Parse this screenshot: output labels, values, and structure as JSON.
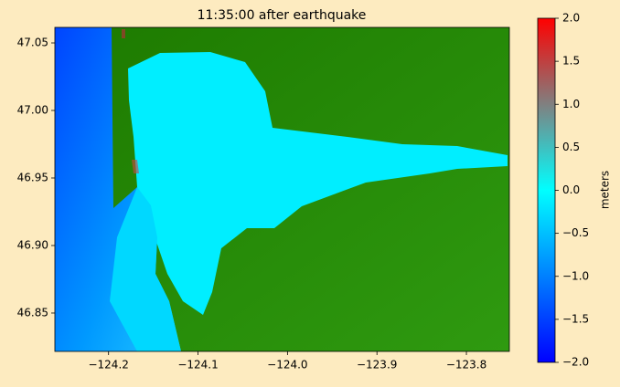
{
  "chart_data": {
    "type": "map",
    "title": "11:35:00 after earthquake",
    "xlim": [
      -124.26,
      -123.752
    ],
    "ylim": [
      46.8216,
      47.0615
    ],
    "xticks": [
      {
        "value": -124.2,
        "label": "−124.2"
      },
      {
        "value": -124.1,
        "label": "−124.1"
      },
      {
        "value": -124.0,
        "label": "−124.0"
      },
      {
        "value": -123.9,
        "label": "−123.9"
      },
      {
        "value": -123.8,
        "label": "−123.8"
      }
    ],
    "yticks": [
      46.85,
      {
        "value": 46.9,
        "label": "46.90"
      },
      46.95,
      {
        "value": 47.0,
        "label": "47.00"
      },
      47.05
    ],
    "colorbar": {
      "label": "meters",
      "clim": [
        -2,
        2
      ],
      "ticks": [
        {
          "value": -2,
          "label": "−2.0"
        },
        {
          "value": -1.5,
          "label": "−1.5"
        },
        {
          "value": -1,
          "label": "−1.0"
        },
        {
          "value": -0.5,
          "label": "−0.5"
        },
        {
          "value": 0,
          "label": "0.0"
        },
        0.5,
        {
          "value": 1,
          "label": "1.0"
        },
        1.5,
        {
          "value": 2,
          "label": "2.0"
        }
      ]
    }
  }
}
